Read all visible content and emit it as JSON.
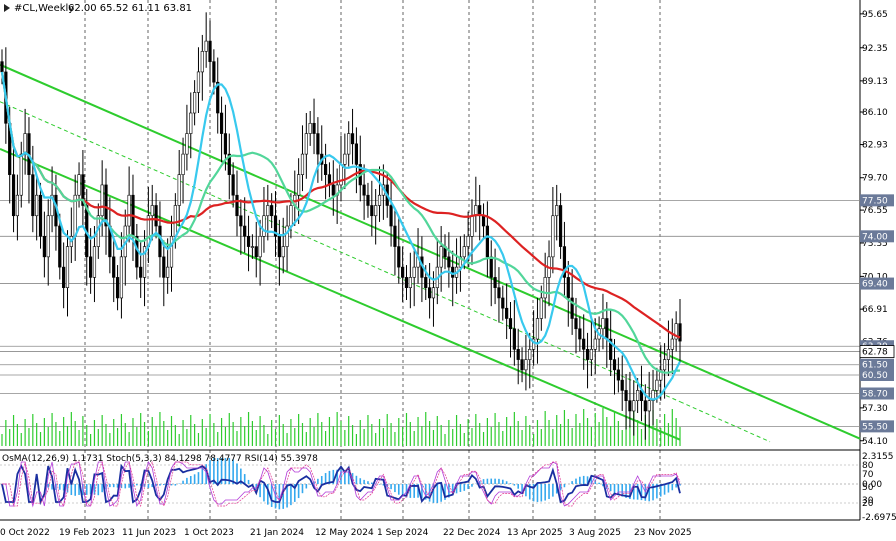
{
  "chart_data": {
    "type": "candlestick",
    "symbol_header": "#CL,Weekly",
    "ohlc_header": "62.00 65.52 61.11 63.81",
    "ylim": [
      53.2,
      97.0
    ],
    "y_ticks": [
      "95.65",
      "92.35",
      "89.13",
      "86.10",
      "82.93",
      "79.70",
      "76.55",
      "73.35",
      "70.10",
      "66.91",
      "63.76",
      "60.50",
      "57.30",
      "54.10"
    ],
    "level_labels": [
      {
        "value": 77.5,
        "text": "77.50",
        "color": "#6b7a99"
      },
      {
        "value": 74.0,
        "text": "74.00",
        "color": "#6b7a99"
      },
      {
        "value": 69.4,
        "text": "69.40",
        "color": "#6b7a99"
      },
      {
        "value": 63.3,
        "text": "63.30",
        "color": "#6b7a99"
      },
      {
        "value": 62.78,
        "text": "62.78",
        "color": "#ffffff"
      },
      {
        "value": 61.5,
        "text": "61.50",
        "color": "#6b7a99"
      },
      {
        "value": 60.5,
        "text": "60.50",
        "color": "#6b7a99"
      },
      {
        "value": 58.7,
        "text": "58.70",
        "color": "#6b7a99"
      },
      {
        "value": 55.5,
        "text": "55.50",
        "color": "#6b7a99"
      }
    ],
    "x_labels": [
      "0 Oct 2022",
      "19 Feb 2023",
      "11 Jun 2023",
      "1 Oct 2023",
      "21 Jan 2024",
      "12 May 2024",
      "1 Sep 2024",
      "22 Dec 2024",
      "13 Apr 2025",
      "3 Aug 2025",
      "23 Nov 2025"
    ],
    "indicator_header": "OsMA(12,26,9) 1.1731   Stoch(5,3,3) 84.1298 78.4777   RSI(14) 55.3978",
    "indicator_ticks": [
      "2.3155",
      "80",
      "70",
      "0.00",
      "50",
      "30",
      "20",
      "-2.6975"
    ],
    "closes": [
      90,
      85,
      80,
      76,
      78,
      82,
      84,
      80,
      76,
      78,
      74,
      72,
      76,
      78,
      75,
      71,
      69,
      73,
      74,
      78,
      80,
      77,
      72,
      70,
      73,
      76,
      79,
      75,
      72,
      70,
      68,
      72,
      75,
      78,
      74,
      71,
      70,
      73,
      76,
      77,
      75,
      72,
      70,
      71,
      74,
      77,
      80,
      82,
      84,
      86,
      88,
      90,
      92,
      93,
      91,
      89,
      86,
      84,
      82,
      80,
      78,
      76,
      75,
      74,
      73,
      73,
      72,
      74,
      76,
      77,
      76,
      74,
      72,
      73,
      75,
      77,
      78,
      80,
      82,
      84,
      85,
      84,
      82,
      81,
      80,
      79,
      78,
      79,
      81,
      82,
      84,
      83,
      81,
      79,
      78,
      77,
      76,
      77,
      78,
      79,
      77,
      75,
      73,
      71,
      70,
      69,
      70,
      71,
      72,
      70,
      69,
      68,
      69,
      71,
      73,
      72,
      71,
      70,
      71,
      72,
      73,
      74,
      76,
      77,
      76,
      75,
      72,
      70,
      69,
      68,
      67,
      66,
      65,
      63,
      62,
      61,
      62,
      63,
      64,
      66,
      68,
      70,
      72,
      76,
      77,
      73,
      70,
      68,
      66,
      65,
      64,
      63,
      62,
      63,
      64,
      65,
      66,
      64,
      62,
      61,
      60,
      59,
      58,
      57,
      58,
      59,
      58,
      57,
      58,
      59,
      60,
      61,
      62,
      63,
      64,
      65.5,
      63.8
    ],
    "ma_fast_color": "#38c9ee",
    "ma_mid_color": "#52d69a",
    "ma_slow_color": "#dd2222",
    "channel_color": "#2ecc2e",
    "volume_color": "#2ecc2e"
  }
}
